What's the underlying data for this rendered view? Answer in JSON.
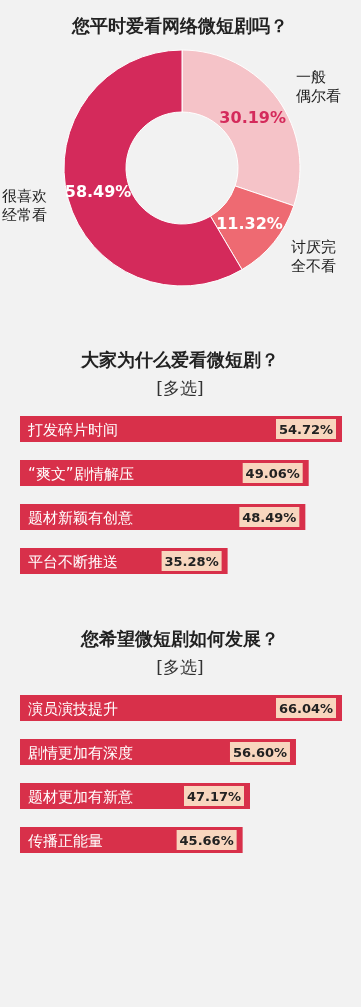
{
  "chart_data": [
    {
      "type": "donut",
      "title": "您平时爱看网络微短剧吗？",
      "categories": [
        "一般偶尔看",
        "讨厌完全不看",
        "很喜欢经常看"
      ],
      "values": [
        30.19,
        11.32,
        58.49
      ],
      "colors": [
        "#f5c3c8",
        "#ee6a72",
        "#d42a5b"
      ],
      "value_labels": [
        "30.19%",
        "11.32%",
        "58.49%"
      ]
    },
    {
      "type": "bar",
      "orientation": "horizontal",
      "title": "大家为什么爱看微短剧？",
      "subtitle": "[多选]",
      "categories": [
        "打发碎片时间",
        "“爽文”剧情解压",
        "题材新颖有创意",
        "平台不断推送"
      ],
      "values": [
        54.72,
        49.06,
        48.49,
        35.28
      ],
      "color": "#d8304a",
      "value_labels": [
        "54.72%",
        "49.06%",
        "48.49%",
        "35.28%"
      ],
      "relative": false
    },
    {
      "type": "bar",
      "orientation": "horizontal",
      "title": "您希望微短剧如何发展？",
      "subtitle": "[多选]",
      "categories": [
        "演员演技提升",
        "剧情更加有深度",
        "题材更加有新意",
        "传播正能量"
      ],
      "values": [
        66.04,
        56.6,
        47.17,
        45.66
      ],
      "color": "#d8304a",
      "value_labels": [
        "66.04%",
        "56.60%",
        "47.17%",
        "45.66%"
      ],
      "relative": false
    }
  ]
}
